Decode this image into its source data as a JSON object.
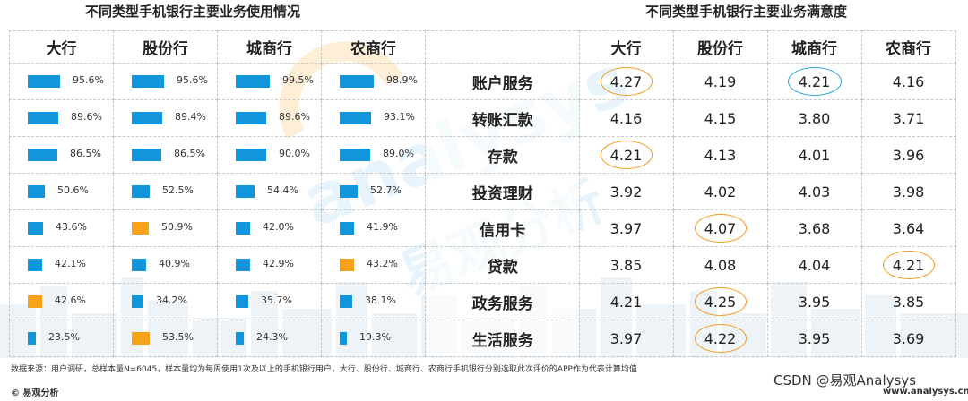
{
  "left_title": "不同类型手机银行主要业务使用情况",
  "right_title": "不同类型手机银行主要业务满意度",
  "colors": {
    "blue": "#1296db",
    "orange": "#f7a21b",
    "circle_orange": "#f39a1d",
    "circle_blue": "#29a1e0"
  },
  "usage": {
    "headers": [
      "大行",
      "股份行",
      "城商行",
      "农商行"
    ],
    "rows": [
      {
        "values": [
          "95.6%",
          "95.6%",
          "99.5%",
          "98.9%"
        ],
        "pct": [
          95.6,
          95.6,
          99.5,
          98.9
        ],
        "colors": [
          "blue",
          "blue",
          "blue",
          "blue"
        ]
      },
      {
        "values": [
          "89.6%",
          "89.4%",
          "89.6%",
          "93.1%"
        ],
        "pct": [
          89.6,
          89.4,
          89.6,
          93.1
        ],
        "colors": [
          "blue",
          "blue",
          "blue",
          "blue"
        ]
      },
      {
        "values": [
          "86.5%",
          "86.5%",
          "90.0%",
          "89.0%"
        ],
        "pct": [
          86.5,
          86.5,
          90.0,
          89.0
        ],
        "colors": [
          "blue",
          "blue",
          "blue",
          "blue"
        ]
      },
      {
        "values": [
          "50.6%",
          "52.5%",
          "54.4%",
          "52.7%"
        ],
        "pct": [
          50.6,
          52.5,
          54.4,
          52.7
        ],
        "colors": [
          "blue",
          "blue",
          "blue",
          "blue"
        ]
      },
      {
        "values": [
          "43.6%",
          "50.9%",
          "42.0%",
          "41.9%"
        ],
        "pct": [
          43.6,
          50.9,
          42.0,
          41.9
        ],
        "colors": [
          "blue",
          "orange",
          "blue",
          "blue"
        ]
      },
      {
        "values": [
          "42.1%",
          "40.9%",
          "42.9%",
          "43.2%"
        ],
        "pct": [
          42.1,
          40.9,
          42.9,
          43.2
        ],
        "colors": [
          "blue",
          "blue",
          "blue",
          "orange"
        ]
      },
      {
        "values": [
          "42.6%",
          "34.2%",
          "35.7%",
          "38.1%"
        ],
        "pct": [
          42.6,
          34.2,
          35.7,
          38.1
        ],
        "colors": [
          "orange",
          "blue",
          "blue",
          "blue"
        ]
      },
      {
        "values": [
          "23.5%",
          "53.5%",
          "24.3%",
          "19.3%"
        ],
        "pct": [
          23.5,
          53.5,
          24.3,
          19.3
        ],
        "colors": [
          "blue",
          "orange",
          "blue",
          "blue"
        ]
      }
    ]
  },
  "satisfaction": {
    "headers": [
      "大行",
      "股份行",
      "城商行",
      "农商行"
    ],
    "rows": [
      {
        "label": "账户服务",
        "values": [
          "4.27",
          "4.19",
          "4.21",
          "4.16"
        ],
        "circles": [
          "orange",
          "",
          "blue",
          ""
        ]
      },
      {
        "label": "转账汇款",
        "values": [
          "4.16",
          "4.15",
          "3.80",
          "3.71"
        ],
        "circles": [
          "",
          "",
          "",
          ""
        ]
      },
      {
        "label": "存款",
        "values": [
          "4.21",
          "4.13",
          "4.01",
          "3.96"
        ],
        "circles": [
          "orange",
          "",
          "",
          ""
        ]
      },
      {
        "label": "投资理财",
        "values": [
          "3.92",
          "4.02",
          "4.03",
          "3.98"
        ],
        "circles": [
          "",
          "",
          "",
          ""
        ]
      },
      {
        "label": "信用卡",
        "values": [
          "3.97",
          "4.07",
          "3.68",
          "3.64"
        ],
        "circles": [
          "",
          "orange",
          "",
          ""
        ]
      },
      {
        "label": "贷款",
        "values": [
          "3.85",
          "4.08",
          "4.04",
          "4.21"
        ],
        "circles": [
          "",
          "",
          "",
          "orange"
        ]
      },
      {
        "label": "政务服务",
        "values": [
          "4.21",
          "4.25",
          "3.95",
          "3.85"
        ],
        "circles": [
          "",
          "orange",
          "",
          ""
        ]
      },
      {
        "label": "生活服务",
        "values": [
          "3.97",
          "4.22",
          "3.95",
          "3.69"
        ],
        "circles": [
          "",
          "orange",
          "",
          ""
        ]
      }
    ]
  },
  "chart_data": [
    {
      "type": "bar",
      "title": "不同类型手机银行主要业务使用情况",
      "categories": [
        "大行",
        "股份行",
        "城商行",
        "农商行"
      ],
      "series": [
        {
          "values": [
            95.6,
            95.6,
            99.5,
            98.9
          ]
        },
        {
          "values": [
            89.6,
            89.4,
            89.6,
            93.1
          ]
        },
        {
          "values": [
            86.5,
            86.5,
            90.0,
            89.0
          ]
        },
        {
          "values": [
            50.6,
            52.5,
            54.4,
            52.7
          ]
        },
        {
          "values": [
            43.6,
            50.9,
            42.0,
            41.9
          ]
        },
        {
          "values": [
            42.1,
            40.9,
            42.9,
            43.2
          ]
        },
        {
          "values": [
            42.6,
            34.2,
            35.7,
            38.1
          ]
        },
        {
          "values": [
            23.5,
            53.5,
            24.3,
            19.3
          ]
        }
      ]
    },
    {
      "type": "table",
      "title": "不同类型手机银行主要业务满意度",
      "columns": [
        "大行",
        "股份行",
        "城商行",
        "农商行"
      ],
      "rows": [
        "账户服务",
        "转账汇款",
        "存款",
        "投资理财",
        "信用卡",
        "贷款",
        "政务服务",
        "生活服务"
      ],
      "values": [
        [
          4.27,
          4.19,
          4.21,
          4.16
        ],
        [
          4.16,
          4.15,
          3.8,
          3.71
        ],
        [
          4.21,
          4.13,
          4.01,
          3.96
        ],
        [
          3.92,
          4.02,
          4.03,
          3.98
        ],
        [
          3.97,
          4.07,
          3.68,
          3.64
        ],
        [
          3.85,
          4.08,
          4.04,
          4.21
        ],
        [
          4.21,
          4.25,
          3.95,
          3.85
        ],
        [
          3.97,
          4.22,
          3.95,
          3.69
        ]
      ]
    }
  ],
  "watermark": {
    "text1": "analysys",
    "text2": "易观分析"
  },
  "footnote": "数据来源：用户调研，总样本量N=6045，样本量均为每周使用1次及以上的手机银行用户，大行、股份行、城商行、农商行手机银行分别选取此次评价的APP作为代表计算均值",
  "brand": "© 易观分析",
  "csdn": "CSDN @易观Analysys",
  "site": "www.analysys.cn"
}
